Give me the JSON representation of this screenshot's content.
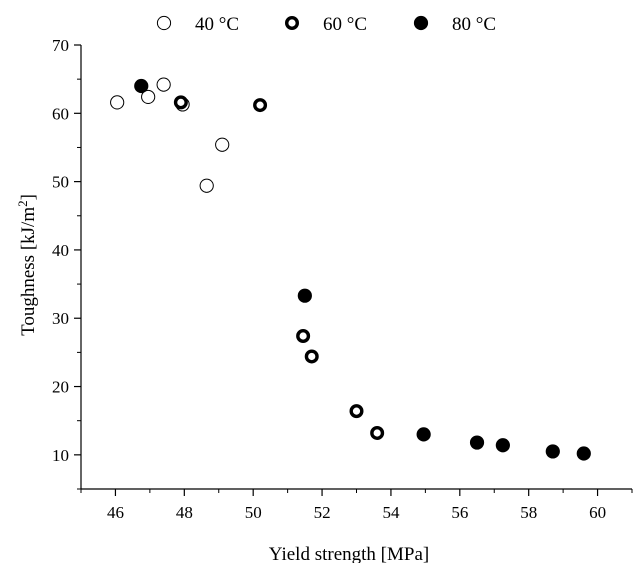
{
  "chart_data": {
    "type": "scatter",
    "xlabel": "Yield strength [MPa]",
    "ylabel_main": "Toughness [kJ/m",
    "ylabel_sup": "2",
    "ylabel_end": "]",
    "xlim": [
      45,
      61
    ],
    "ylim": [
      5,
      70
    ],
    "xticks": [
      46,
      48,
      50,
      52,
      54,
      56,
      58,
      60
    ],
    "yticks": [
      10,
      20,
      30,
      40,
      50,
      60,
      70
    ],
    "x_tick_labels": [
      "46",
      "48",
      "50",
      "52",
      "54",
      "56",
      "58",
      "60"
    ],
    "y_tick_labels": [
      "10",
      "20",
      "30",
      "40",
      "50",
      "60",
      "70"
    ],
    "legend_position": "top",
    "series": [
      {
        "name": "40 °C",
        "marker": "open-thin",
        "points": [
          {
            "x": 46.05,
            "y": 61.6
          },
          {
            "x": 46.95,
            "y": 62.4
          },
          {
            "x": 47.4,
            "y": 64.2
          },
          {
            "x": 47.95,
            "y": 61.3
          },
          {
            "x": 48.65,
            "y": 49.4
          },
          {
            "x": 49.1,
            "y": 55.4
          }
        ]
      },
      {
        "name": "60 °C",
        "marker": "open-thick",
        "points": [
          {
            "x": 47.9,
            "y": 61.6
          },
          {
            "x": 50.2,
            "y": 61.2
          },
          {
            "x": 51.45,
            "y": 27.4
          },
          {
            "x": 51.7,
            "y": 24.4
          },
          {
            "x": 53.0,
            "y": 16.4
          },
          {
            "x": 53.6,
            "y": 13.2
          }
        ]
      },
      {
        "name": "80 °C",
        "marker": "filled",
        "points": [
          {
            "x": 46.75,
            "y": 64.0
          },
          {
            "x": 51.5,
            "y": 33.3
          },
          {
            "x": 54.95,
            "y": 13.0
          },
          {
            "x": 56.5,
            "y": 11.8
          },
          {
            "x": 57.25,
            "y": 11.4
          },
          {
            "x": 58.7,
            "y": 10.5
          },
          {
            "x": 59.6,
            "y": 10.2
          }
        ]
      }
    ]
  }
}
